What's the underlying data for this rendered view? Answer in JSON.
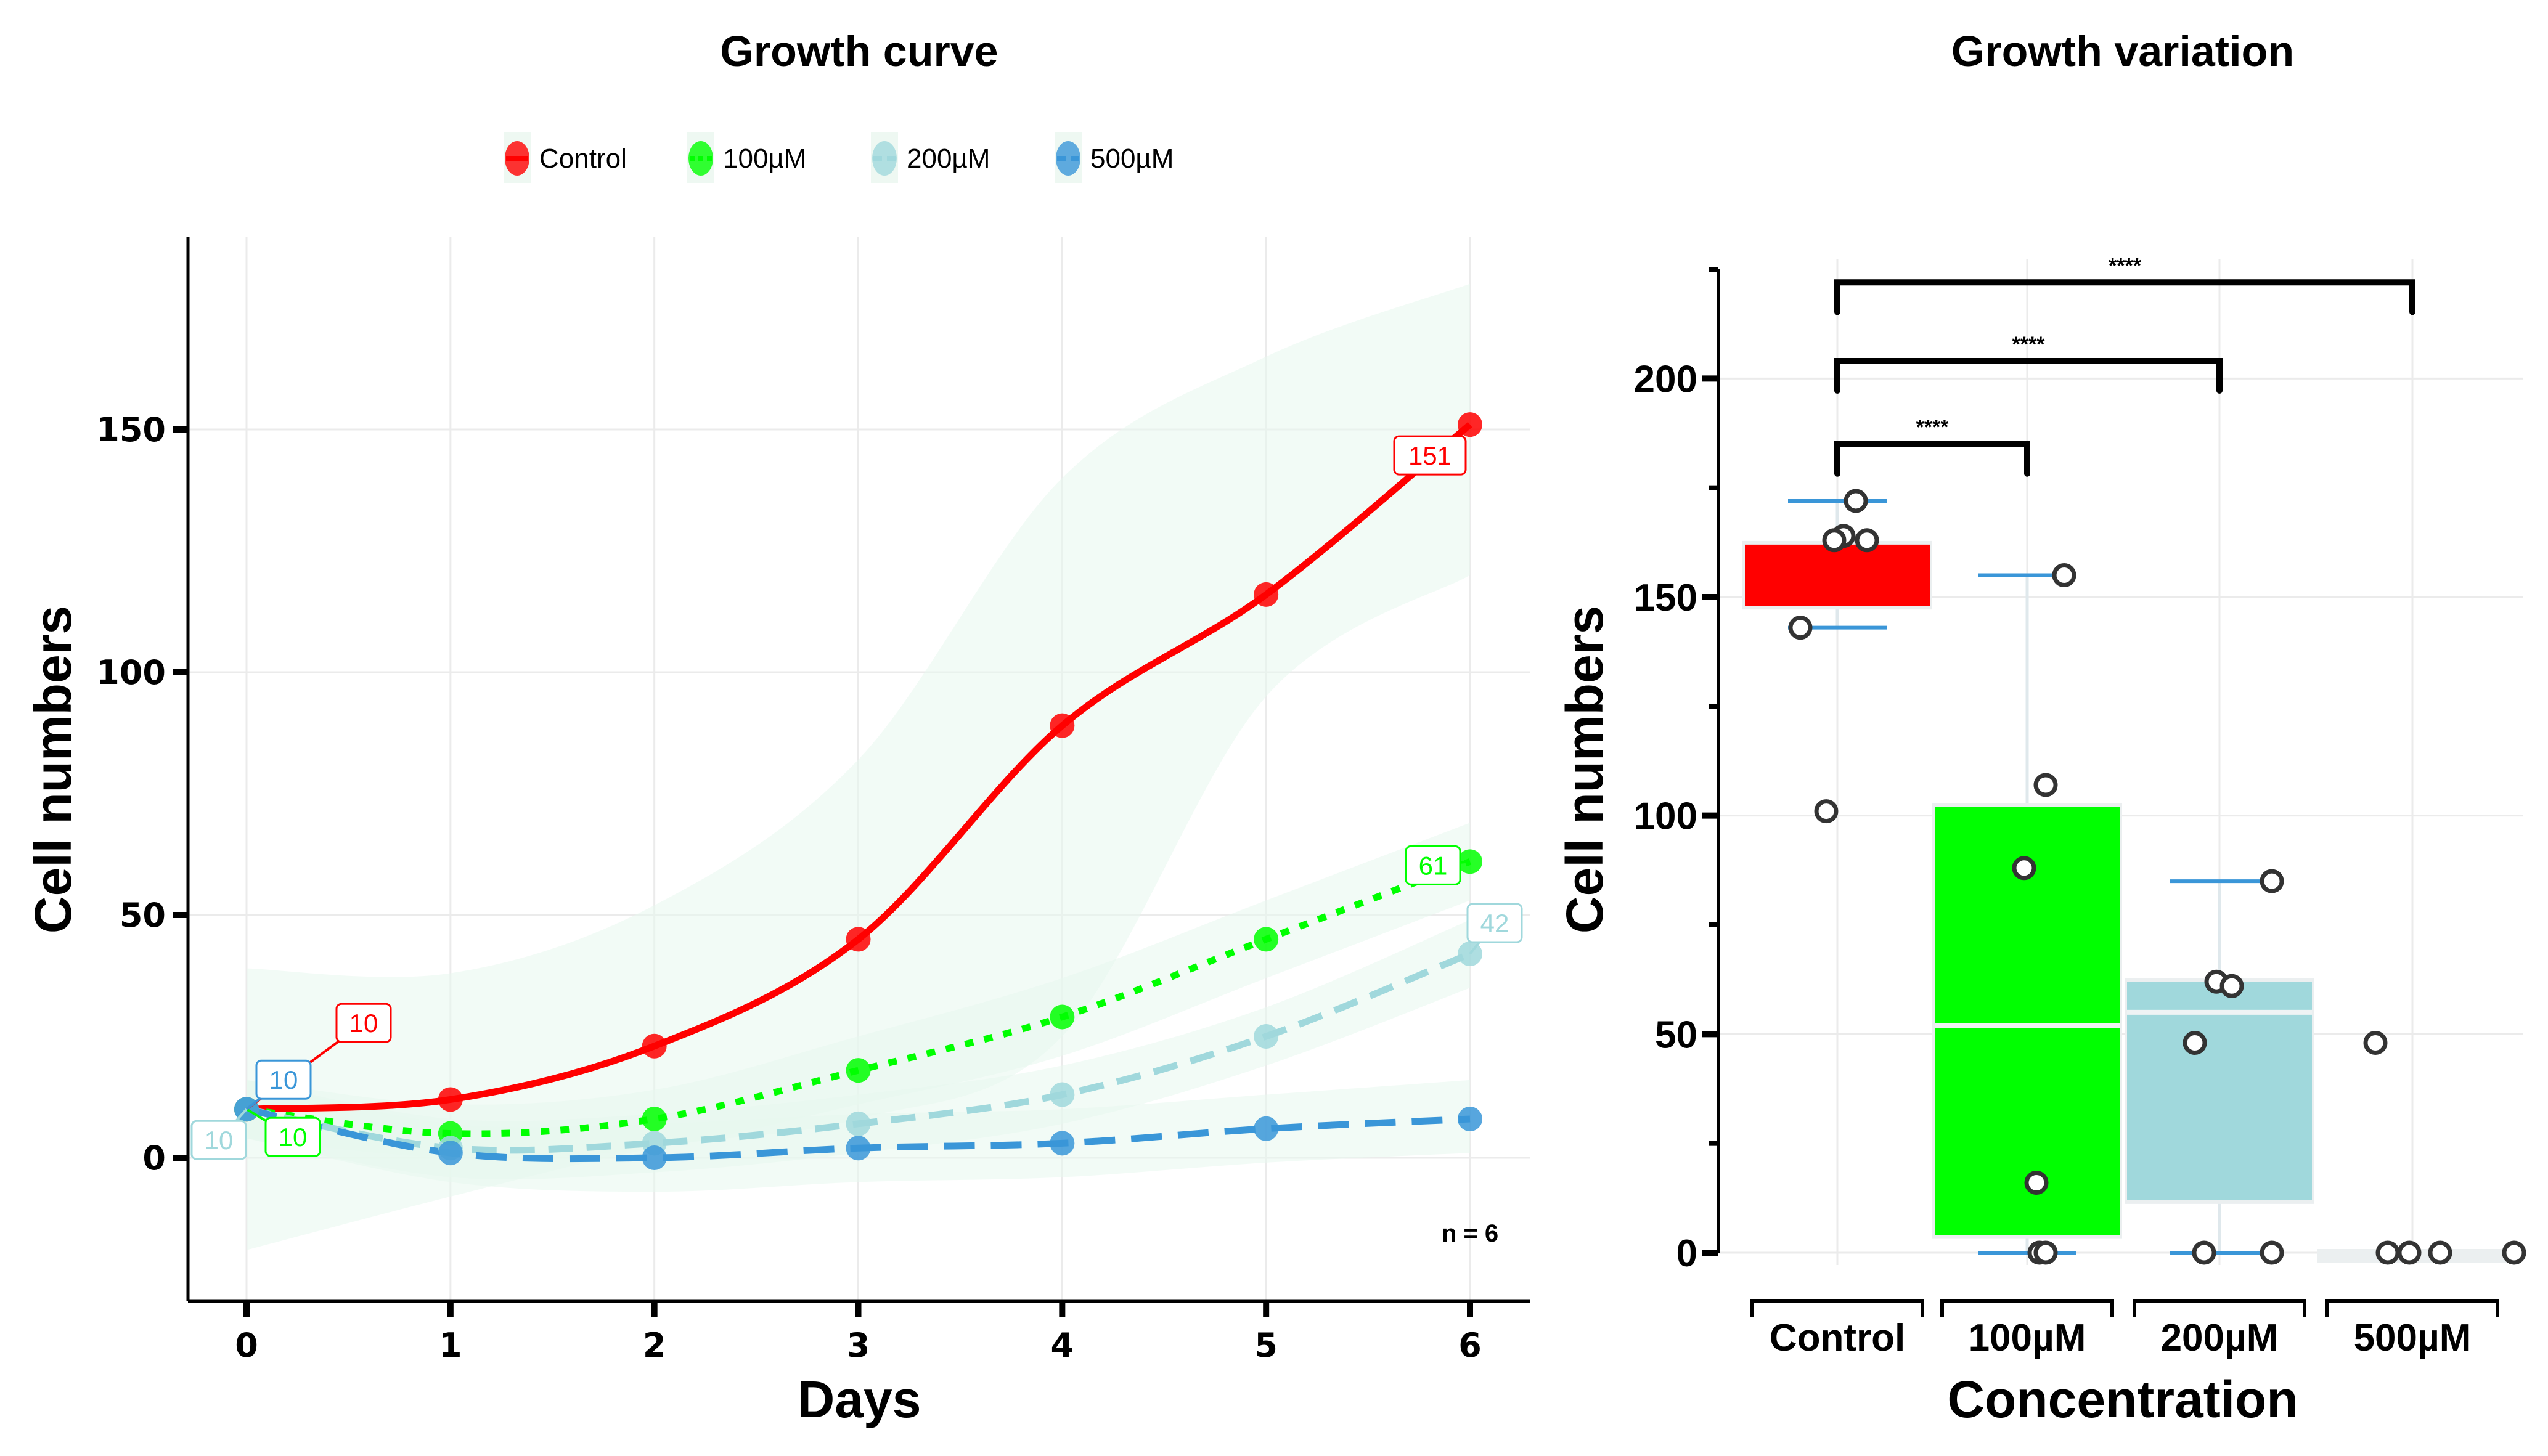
{
  "chart_data": [
    {
      "type": "line",
      "title": "Growth curve",
      "xlabel": "Days",
      "ylabel": "Cell numbers",
      "x": [
        0,
        1,
        2,
        3,
        4,
        5,
        6
      ],
      "xticks": [
        "0",
        "1",
        "2",
        "3",
        "4",
        "5",
        "6"
      ],
      "yticks": [
        "0",
        "50",
        "100",
        "150"
      ],
      "ytick_values": [
        0,
        50,
        100,
        150
      ],
      "xlim": [
        -0.3,
        6.3
      ],
      "ylim": [
        -29,
        190
      ],
      "grid": true,
      "legend_position": "top",
      "annotation": "n = 6",
      "confidence_band_color": "#e8f7ee",
      "series": [
        {
          "name": "Control",
          "color": "#FF0000",
          "dash": "solid",
          "values": [
            10,
            12,
            23,
            45,
            89,
            116,
            151
          ],
          "band_lower": [
            -19,
            -8,
            2,
            8,
            25,
            95,
            120
          ],
          "band_upper": [
            39,
            38,
            52,
            82,
            140,
            165,
            180
          ],
          "labels": [
            {
              "x": 0,
              "text": "10"
            },
            {
              "x": 6,
              "text": "151"
            }
          ]
        },
        {
          "name": "100µM",
          "color": "#00FF00",
          "dash": "dotted",
          "values": [
            10,
            5,
            8,
            18,
            29,
            45,
            61
          ],
          "band_lower": [
            4,
            0,
            2,
            11,
            21,
            37,
            53
          ],
          "band_upper": [
            16,
            11,
            14,
            25,
            37,
            53,
            69
          ],
          "labels": [
            {
              "x": 0,
              "text": "10"
            },
            {
              "x": 6,
              "text": "61"
            }
          ]
        },
        {
          "name": "200µM",
          "color": "#A0D8DC",
          "dash": "dashed",
          "values": [
            10,
            2,
            3,
            7,
            13,
            25,
            42
          ],
          "band_lower": [
            4,
            -4,
            -3,
            1,
            7,
            19,
            35
          ],
          "band_upper": [
            16,
            8,
            9,
            13,
            19,
            31,
            49
          ],
          "labels": [
            {
              "x": 0,
              "text": "10"
            },
            {
              "x": 6,
              "text": "42"
            }
          ]
        },
        {
          "name": "500µM",
          "color": "#3A96D8",
          "dash": "longdash",
          "values": [
            10,
            1,
            0,
            2,
            3,
            6,
            8
          ],
          "band_lower": [
            4,
            -5,
            -7,
            -5,
            -4,
            -1,
            1
          ],
          "band_upper": [
            16,
            7,
            7,
            9,
            10,
            13,
            16
          ],
          "labels": [
            {
              "x": 0,
              "text": "10"
            }
          ]
        }
      ]
    },
    {
      "type": "box",
      "title": "Growth variation",
      "xlabel": "Concentration",
      "ylabel": "Cell numbers",
      "categories": [
        "Control",
        "100µM",
        "200µM",
        "500µM"
      ],
      "yticks": [
        "0",
        "50",
        "100",
        "150",
        "200"
      ],
      "ytick_values": [
        0,
        50,
        100,
        150,
        200
      ],
      "minor_ticks": [
        25,
        75,
        125,
        175,
        225
      ],
      "ylim": [
        0,
        225
      ],
      "grid": true,
      "series": [
        {
          "name": "Control",
          "color": "#FF0000",
          "q1": 148,
          "median": 162,
          "q3": 162,
          "whisker_low": 143,
          "whisker_high": 172,
          "points": [
            172,
            164,
            163,
            163,
            143,
            101
          ]
        },
        {
          "name": "100µM",
          "color": "#00FF00",
          "q1": 4,
          "median": 52,
          "q3": 102,
          "whisker_low": 0,
          "whisker_high": 155,
          "points": [
            155,
            107,
            88,
            16,
            0,
            0
          ]
        },
        {
          "name": "200µM",
          "color": "#A0D8DC",
          "q1": 12,
          "median": 55,
          "q3": 62,
          "whisker_low": 0,
          "whisker_high": 85,
          "points": [
            85,
            62,
            61,
            48,
            0,
            0
          ]
        },
        {
          "name": "500µM",
          "color": "#E9EEEF",
          "q1": 0,
          "median": 0,
          "q3": 0,
          "whisker_low": 0,
          "whisker_high": 0,
          "points": [
            48,
            0,
            0,
            0,
            0
          ]
        }
      ],
      "comparisons": [
        {
          "from": "Control",
          "to": "100µM",
          "label": "****",
          "y": 185
        },
        {
          "from": "Control",
          "to": "200µM",
          "label": "****",
          "y": 204
        },
        {
          "from": "Control",
          "to": "500µM",
          "label": "****",
          "y": 222
        }
      ]
    }
  ]
}
